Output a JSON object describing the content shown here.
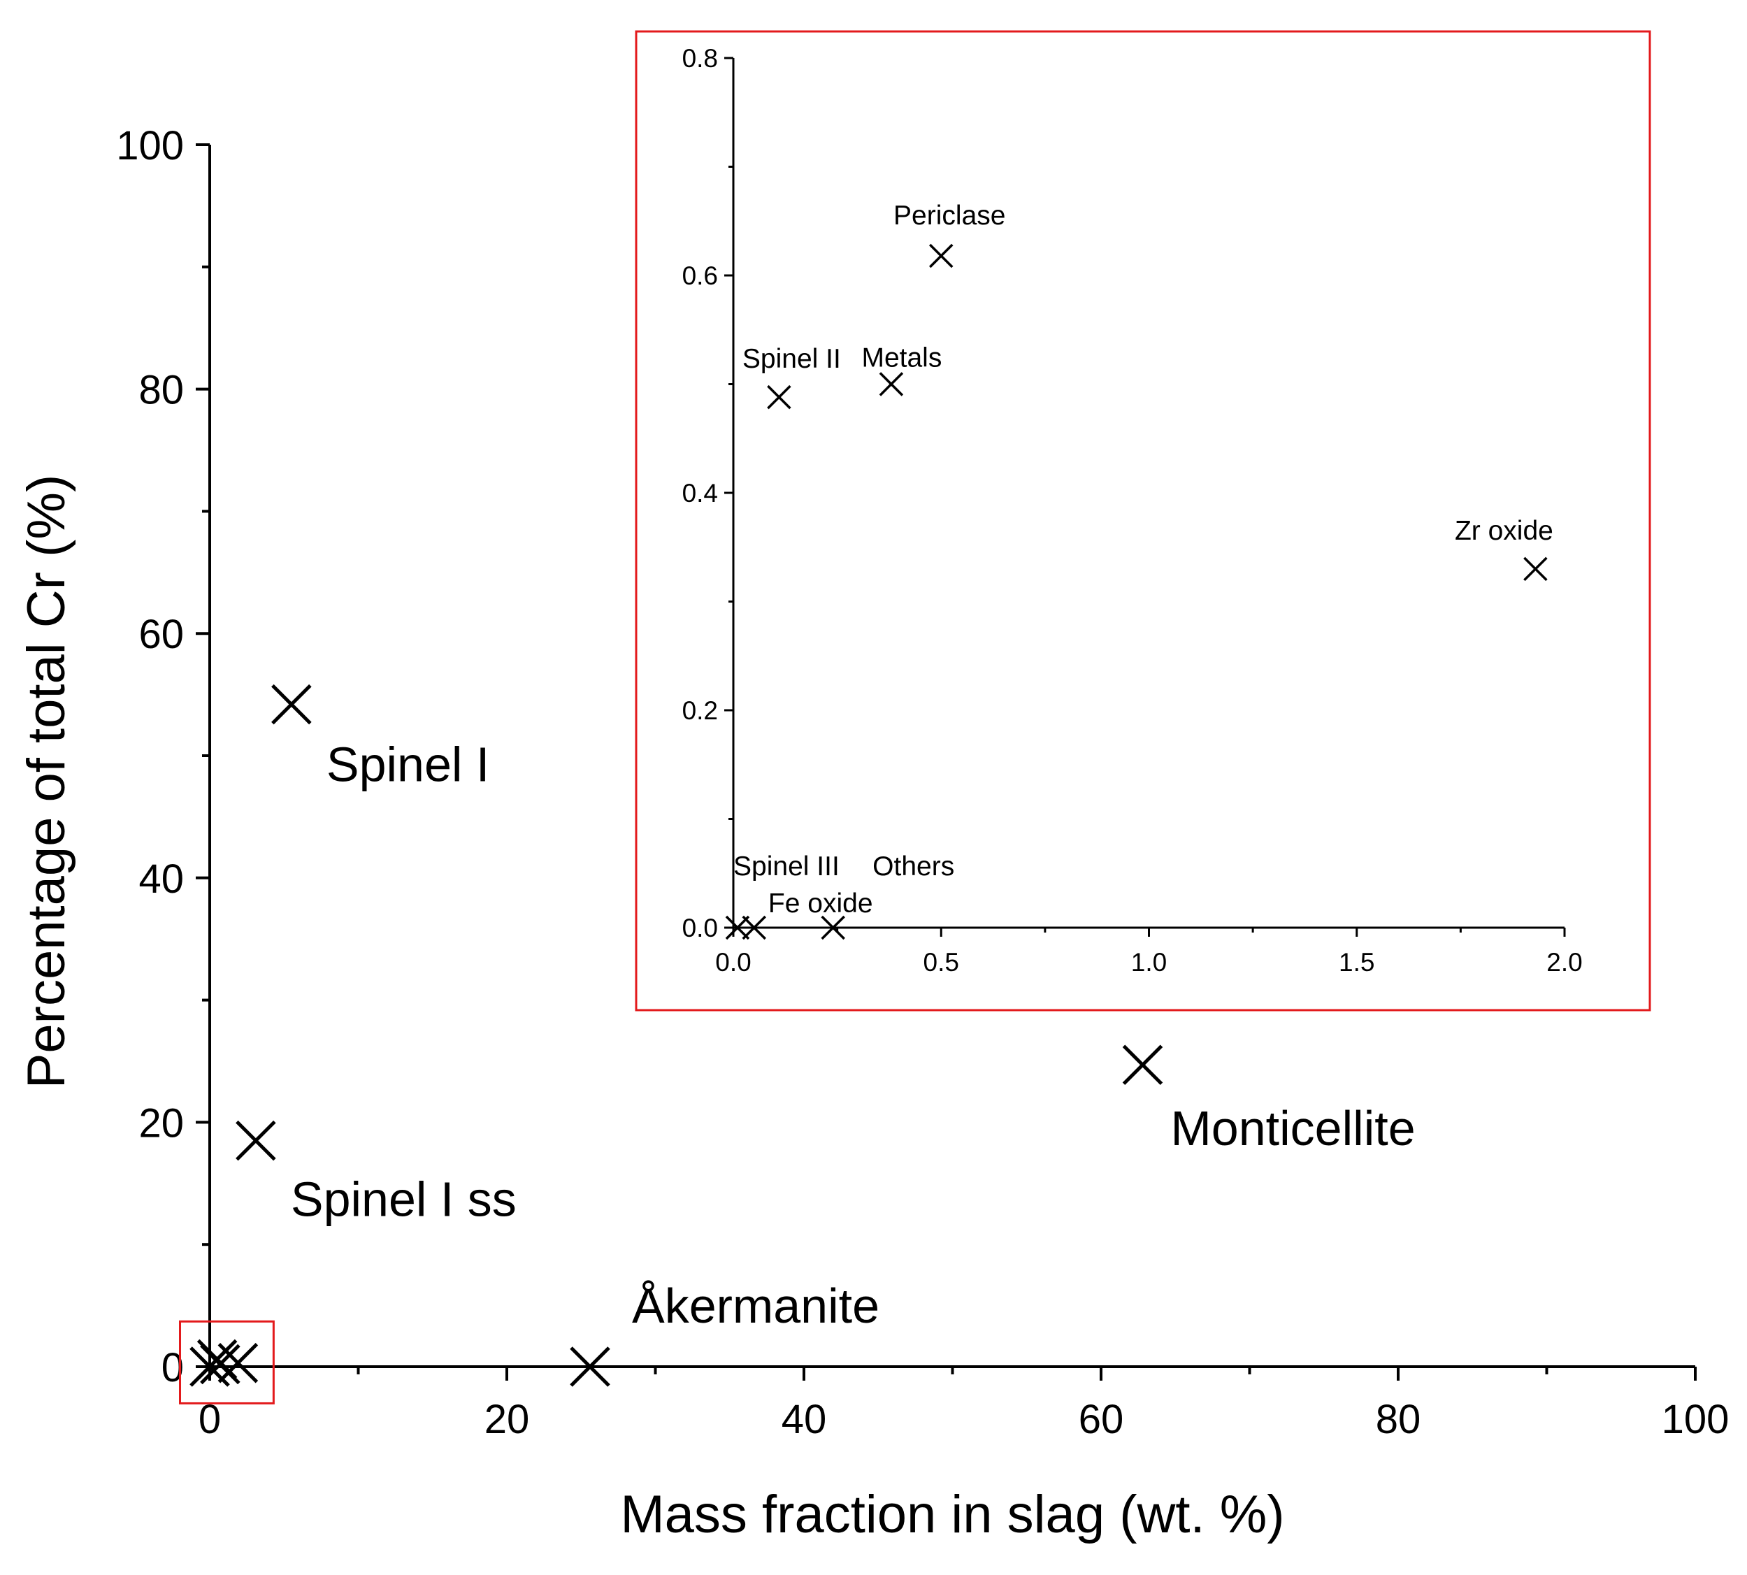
{
  "chart_data": [
    {
      "type": "scatter",
      "role": "main",
      "title": "",
      "xlabel": "Mass fraction in slag (wt. %)",
      "ylabel": "Percentage of total Cr (%)",
      "xlim": [
        0,
        100
      ],
      "ylim": [
        0,
        100
      ],
      "xticks": [
        0,
        20,
        40,
        60,
        80,
        100
      ],
      "yticks": [
        0,
        20,
        40,
        60,
        80,
        100
      ],
      "marker": "x",
      "points": [
        {
          "label": "Spinel I",
          "x": 5.5,
          "y": 54.2
        },
        {
          "label": "Spinel I ss",
          "x": 3.1,
          "y": 18.5
        },
        {
          "label": "Monticellite",
          "x": 62.8,
          "y": 24.7
        },
        {
          "label": "Åkermanite",
          "x": 25.6,
          "y": 0.0
        },
        {
          "label": "",
          "x": 0.0,
          "y": 0.0
        },
        {
          "label": "",
          "x": 0.5,
          "y": 0.6
        },
        {
          "label": "",
          "x": 0.7,
          "y": 0.2
        },
        {
          "label": "",
          "x": 1.9,
          "y": 0.3
        }
      ],
      "zoom_box": {
        "x0": -2,
        "x1": 4.3,
        "y0": -3,
        "y1": 3.7,
        "color": "#e31a1c"
      }
    },
    {
      "type": "scatter",
      "role": "inset",
      "title": "",
      "xlabel": "",
      "ylabel": "",
      "xlim": [
        0,
        2.0
      ],
      "ylim": [
        0,
        0.8
      ],
      "xticks": [
        "0.0",
        "0.5",
        "1.0",
        "1.5",
        "2.0"
      ],
      "yticks": [
        "0.0",
        "0.2",
        "0.4",
        "0.6",
        "0.8"
      ],
      "marker": "x",
      "border_color": "#e31a1c",
      "points": [
        {
          "label": "Periclase",
          "x": 0.5,
          "y": 0.618
        },
        {
          "label": "Spinel II",
          "x": 0.11,
          "y": 0.488
        },
        {
          "label": "Metals",
          "x": 0.38,
          "y": 0.5
        },
        {
          "label": "Zr oxide",
          "x": 1.93,
          "y": 0.33
        },
        {
          "label": "Spinel III",
          "x": 0.01,
          "y": 0.0
        },
        {
          "label": "Fe oxide",
          "x": 0.05,
          "y": 0.0
        },
        {
          "label": "Others",
          "x": 0.24,
          "y": 0.0
        }
      ]
    }
  ]
}
